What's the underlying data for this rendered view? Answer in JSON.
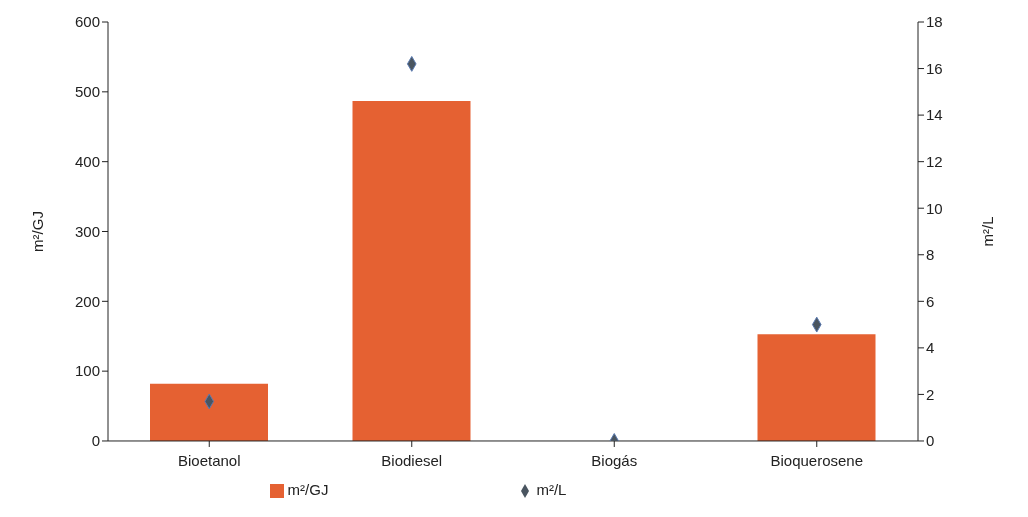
{
  "chart_data": {
    "type": "bar",
    "categories": [
      "Bioetanol",
      "Biodiesel",
      "Biogás",
      "Bioquerosene"
    ],
    "series": [
      {
        "name": "m²/GJ",
        "color": "#e56132",
        "values": [
          82,
          487,
          0,
          153
        ]
      },
      {
        "name": "m²/L",
        "type": "scatter",
        "axis": "y2",
        "color": "#4a5560",
        "values": [
          1.7,
          16.2,
          0,
          5.0
        ]
      }
    ],
    "ylabel": "m²/GJ",
    "y2label": "m²/L",
    "ylim": [
      0,
      600
    ],
    "yticks": [
      0,
      100,
      200,
      300,
      400,
      500,
      600
    ],
    "y2lim": [
      0,
      18
    ],
    "y2ticks": [
      0,
      2,
      4,
      6,
      8,
      10,
      12,
      14,
      16,
      18
    ],
    "grid": false,
    "legend": "bottom",
    "marker": "diamond"
  }
}
